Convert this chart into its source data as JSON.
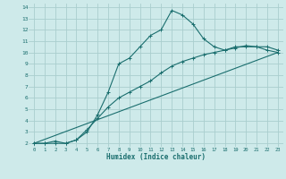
{
  "title": "",
  "xlabel": "Humidex (Indice chaleur)",
  "background_color": "#ceeaea",
  "grid_color": "#aacece",
  "line_color": "#1a6e6e",
  "xlim": [
    -0.5,
    23.5
  ],
  "ylim": [
    1.7,
    14.3
  ],
  "xticks": [
    0,
    1,
    2,
    3,
    4,
    5,
    6,
    7,
    8,
    9,
    10,
    11,
    12,
    13,
    14,
    15,
    16,
    17,
    18,
    19,
    20,
    21,
    22,
    23
  ],
  "yticks": [
    2,
    3,
    4,
    5,
    6,
    7,
    8,
    9,
    10,
    11,
    12,
    13,
    14
  ],
  "curve1_x": [
    0,
    1,
    2,
    3,
    4,
    5,
    6,
    7,
    8,
    9,
    10,
    11,
    12,
    13,
    14,
    15,
    16,
    17,
    18,
    19,
    20,
    21,
    22,
    23
  ],
  "curve1_y": [
    2.0,
    2.0,
    2.0,
    2.0,
    2.3,
    3.0,
    4.5,
    6.5,
    9.0,
    9.5,
    10.5,
    11.5,
    12.0,
    13.7,
    13.3,
    12.5,
    11.2,
    10.5,
    10.2,
    10.5,
    10.5,
    10.5,
    10.2,
    10.0
  ],
  "curve2_x": [
    0,
    1,
    2,
    3,
    4,
    5,
    6,
    7,
    8,
    9,
    10,
    11,
    12,
    13,
    14,
    15,
    16,
    17,
    18,
    19,
    20,
    21,
    22,
    23
  ],
  "curve2_y": [
    2.0,
    2.0,
    2.2,
    2.0,
    2.3,
    3.2,
    4.2,
    5.2,
    6.0,
    6.5,
    7.0,
    7.5,
    8.2,
    8.8,
    9.2,
    9.5,
    9.8,
    10.0,
    10.2,
    10.4,
    10.6,
    10.5,
    10.5,
    10.2
  ],
  "curve3_x": [
    0,
    23
  ],
  "curve3_y": [
    2.0,
    10.0
  ]
}
